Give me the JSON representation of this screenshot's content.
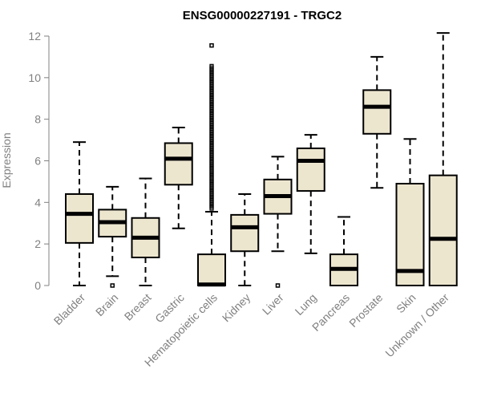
{
  "chart_data": {
    "type": "boxplot",
    "title": "ENSG00000227191 - TRGC2",
    "xlabel": "",
    "ylabel": "Expression",
    "ylim": [
      0,
      12
    ],
    "yticks": [
      0,
      2,
      4,
      6,
      8,
      10,
      12
    ],
    "box_fill": "#ede6cf",
    "categories": [
      "Bladder",
      "Brain",
      "Breast",
      "Gastric",
      "Hematopoietic cells",
      "Kidney",
      "Liver",
      "Lung",
      "Pancreas",
      "Prostate",
      "Skin",
      "Unknown / Other"
    ],
    "boxes": [
      {
        "label": "Bladder",
        "whisker_low": 0.0,
        "q1": 2.05,
        "median": 3.45,
        "q3": 4.4,
        "whisker_high": 6.9,
        "outliers": []
      },
      {
        "label": "Brain",
        "whisker_low": 0.45,
        "q1": 2.35,
        "median": 3.05,
        "q3": 3.65,
        "whisker_high": 4.75,
        "outliers": [
          0.0
        ]
      },
      {
        "label": "Breast",
        "whisker_low": 0.0,
        "q1": 1.35,
        "median": 2.3,
        "q3": 3.25,
        "whisker_high": 5.15,
        "outliers": []
      },
      {
        "label": "Gastric",
        "whisker_low": 2.75,
        "q1": 4.85,
        "median": 6.1,
        "q3": 6.85,
        "whisker_high": 7.6,
        "outliers": []
      },
      {
        "label": "Hematopoietic cells",
        "whisker_low": 0.0,
        "q1": 0.0,
        "median": 0.05,
        "q3": 1.5,
        "whisker_high": 3.55,
        "outliers_range": [
          3.7,
          10.6
        ],
        "outliers": [
          11.55
        ]
      },
      {
        "label": "Kidney",
        "whisker_low": 0.0,
        "q1": 1.65,
        "median": 2.8,
        "q3": 3.4,
        "whisker_high": 4.4,
        "outliers": []
      },
      {
        "label": "Liver",
        "whisker_low": 1.65,
        "q1": 3.45,
        "median": 4.3,
        "q3": 5.1,
        "whisker_high": 6.2,
        "outliers": [
          0.0
        ]
      },
      {
        "label": "Lung",
        "whisker_low": 1.55,
        "q1": 4.55,
        "median": 6.0,
        "q3": 6.6,
        "whisker_high": 7.25,
        "outliers": []
      },
      {
        "label": "Pancreas",
        "whisker_low": 0.0,
        "q1": 0.0,
        "median": 0.8,
        "q3": 1.5,
        "whisker_high": 3.3,
        "outliers": []
      },
      {
        "label": "Prostate",
        "whisker_low": 4.7,
        "q1": 7.3,
        "median": 8.6,
        "q3": 9.4,
        "whisker_high": 11.0,
        "outliers": []
      },
      {
        "label": "Skin",
        "whisker_low": 0.0,
        "q1": 0.0,
        "median": 0.7,
        "q3": 4.9,
        "whisker_high": 7.05,
        "outliers": []
      },
      {
        "label": "Unknown / Other",
        "whisker_low": 0.0,
        "q1": 0.0,
        "median": 2.25,
        "q3": 5.3,
        "whisker_high": 12.15,
        "outliers": []
      }
    ]
  }
}
